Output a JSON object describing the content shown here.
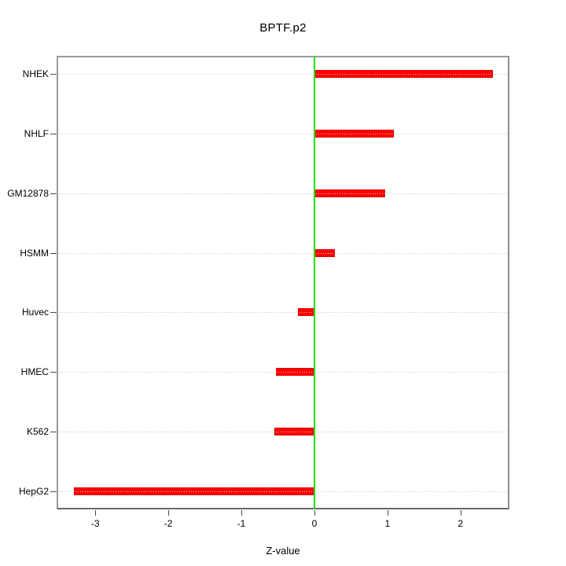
{
  "title": "BPTF.p2",
  "chart_data": {
    "type": "bar",
    "orientation": "horizontal",
    "title": "BPTF.p2",
    "xlabel": "Z-value",
    "ylabel": "",
    "categories": [
      "NHEK",
      "NHLF",
      "GM12878",
      "HSMM",
      "Huvec",
      "HMEC",
      "K562",
      "HepG2"
    ],
    "values": [
      2.44,
      1.09,
      0.97,
      0.28,
      -0.23,
      -0.53,
      -0.55,
      -3.29
    ],
    "xlim": [
      -3.53,
      2.67
    ],
    "xticks": [
      -3,
      -2,
      -1,
      0,
      1,
      2
    ],
    "grid": "horizontal-dotted",
    "legend": "none",
    "colors": {
      "bar": "#ff0000",
      "bar_border": "#e00000",
      "zero_line": "#00e608",
      "gridline": "#c9c9c9",
      "frame": "#8f8f8f",
      "text": "#000000"
    }
  }
}
